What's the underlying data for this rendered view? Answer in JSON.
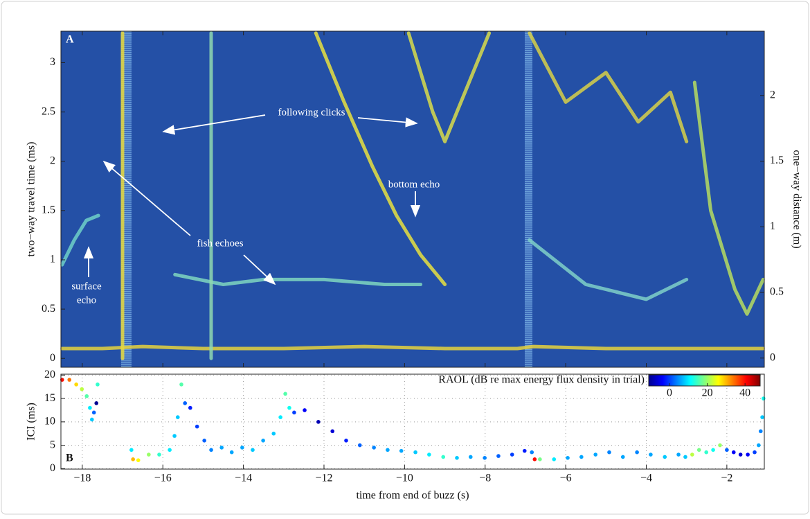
{
  "chart_data": [
    {
      "type": "line",
      "annotations": [
        "A",
        "following clicks",
        "bottom echo",
        "fish echoes",
        "surface",
        "echo"
      ],
      "ylabel": "two−way travel time (ms)",
      "y2label": "one−way distance (m)",
      "xlim": [
        -18.53,
        -1.07
      ],
      "ylim": [
        -0.09,
        3.32
      ],
      "y2lim": [
        -0.07,
        2.49
      ],
      "xticks": [
        -18,
        -16,
        -14,
        -12,
        -10,
        -8,
        -6,
        -4,
        -2
      ],
      "yticks": [
        0,
        0.5,
        1,
        1.5,
        2,
        2.5,
        3
      ],
      "y2ticks": [
        0,
        0.5,
        1,
        1.5,
        2
      ],
      "background": "#2450a6",
      "series": [
        {
          "color": "#e6d23c",
          "x": [
            -18.5,
            -17.5,
            -16.5,
            -15,
            -13,
            -11,
            -9,
            -7.2,
            -6.8,
            -5,
            -3,
            -1.1
          ],
          "values": [
            0.1,
            0.1,
            0.12,
            0.1,
            0.1,
            0.12,
            0.1,
            0.1,
            0.12,
            0.1,
            0.1,
            0.1
          ]
        },
        {
          "color": "#6fd0c8",
          "x": [
            -18.5,
            -18.2,
            -17.9,
            -17.6
          ],
          "values": [
            0.95,
            1.2,
            1.4,
            1.45
          ]
        },
        {
          "color": "#e8e040",
          "x": [
            -12.2,
            -11.5,
            -10.8,
            -10.2,
            -9.6,
            -9.0
          ],
          "values": [
            3.3,
            2.6,
            1.95,
            1.45,
            1.05,
            0.75
          ]
        },
        {
          "color": "#d8dc4a",
          "x": [
            -9.9,
            -9.6,
            -9.3,
            -9.0,
            -8.7,
            -8.3,
            -7.9
          ],
          "values": [
            3.3,
            2.9,
            2.5,
            2.2,
            2.5,
            2.9,
            3.3
          ]
        },
        {
          "color": "#7fd6c0",
          "x": [
            -15.7,
            -14.5,
            -13.5,
            -12.0,
            -10.5,
            -9.6
          ],
          "values": [
            0.85,
            0.75,
            0.8,
            0.8,
            0.75,
            0.75
          ]
        },
        {
          "color": "#e6d83c",
          "x": [
            -17.0,
            -17.0
          ],
          "values": [
            0,
            3.3
          ]
        },
        {
          "color": "#8fd8b0",
          "x": [
            -14.8,
            -14.8
          ],
          "values": [
            0,
            3.3
          ]
        },
        {
          "color": "#7fd0c8",
          "x": [
            -6.9,
            -5.5,
            -4.0,
            -3.0
          ],
          "values": [
            1.2,
            0.75,
            0.6,
            0.8
          ]
        },
        {
          "color": "#b6dc60",
          "x": [
            -2.8,
            -2.4,
            -1.8,
            -1.5,
            -1.1
          ],
          "values": [
            2.8,
            1.5,
            0.7,
            0.45,
            0.8
          ]
        },
        {
          "color": "#d8d048",
          "x": [
            -6.9,
            -6.0,
            -5.0,
            -4.2,
            -3.4,
            -3.0
          ],
          "values": [
            3.3,
            2.6,
            2.9,
            2.4,
            2.7,
            2.2
          ]
        }
      ]
    },
    {
      "type": "scatter",
      "annotations": [
        "B"
      ],
      "ylabel": "ICI (ms)",
      "xlabel": "time from end of buzz (s)",
      "xlim": [
        -18.53,
        -1.07
      ],
      "ylim": [
        -0.1,
        20.2
      ],
      "xticks": [
        {
          "value": -18,
          "label": "−18"
        },
        {
          "value": -16,
          "label": "−16"
        },
        {
          "value": -14,
          "label": "−14"
        },
        {
          "value": -12,
          "label": "−12"
        },
        {
          "value": -10,
          "label": "−10"
        },
        {
          "value": -8,
          "label": "−8"
        },
        {
          "value": -6,
          "label": "−6"
        },
        {
          "value": -4,
          "label": "−4"
        },
        {
          "value": -2,
          "label": "−2"
        }
      ],
      "yticks": [
        0,
        5,
        10,
        15,
        20
      ],
      "grid": true,
      "x": [
        -18.5,
        -18.32,
        -18.15,
        -18.01,
        -17.89,
        -17.81,
        -17.76,
        -17.71,
        -17.65,
        -17.62,
        -16.78,
        -16.74,
        -16.61,
        -16.35,
        -16.09,
        -15.83,
        -15.71,
        -15.63,
        -15.54,
        -15.45,
        -15.32,
        -15.15,
        -14.97,
        -14.8,
        -14.54,
        -14.29,
        -14.03,
        -13.77,
        -13.51,
        -13.25,
        -13.08,
        -12.96,
        -12.86,
        -12.74,
        -12.48,
        -12.14,
        -11.79,
        -11.45,
        -11.11,
        -10.76,
        -10.42,
        -10.08,
        -9.73,
        -9.39,
        -9.04,
        -8.7,
        -8.36,
        -8.01,
        -7.67,
        -7.33,
        -7.02,
        -6.84,
        -6.77,
        -6.64,
        -6.29,
        -5.95,
        -5.61,
        -5.26,
        -4.92,
        -4.58,
        -4.23,
        -3.89,
        -3.54,
        -3.2,
        -3.03,
        -2.86,
        -2.69,
        -2.51,
        -2.34,
        -2.17,
        -2.0,
        -1.83,
        -1.66,
        -1.48,
        -1.31,
        -1.21,
        -1.16,
        -1.12,
        -1.09
      ],
      "values": [
        19,
        19,
        18,
        17,
        15.5,
        13,
        10.5,
        12,
        14,
        18,
        4,
        2,
        1.8,
        3,
        3,
        4,
        7,
        11,
        18,
        14,
        13,
        9,
        6,
        4,
        4.5,
        3.5,
        4.5,
        4,
        6,
        7.5,
        11,
        16,
        13,
        12,
        12.5,
        10,
        8,
        6,
        5,
        4.5,
        4,
        3.8,
        3.5,
        3,
        2.5,
        2.3,
        2.5,
        2.3,
        2.7,
        3,
        3.8,
        3.5,
        2,
        2,
        2,
        2.3,
        2.5,
        3,
        3.5,
        2.5,
        3.5,
        3,
        2.5,
        3,
        2.5,
        3,
        4,
        3.5,
        4,
        5,
        4,
        3.5,
        3,
        3,
        3.5,
        5,
        8,
        11,
        15
      ],
      "c": [
        40,
        34,
        28,
        22,
        16,
        10,
        8,
        2,
        -10,
        14,
        10,
        30,
        26,
        20,
        14,
        10,
        8,
        8,
        16,
        2,
        -2,
        0,
        2,
        4,
        6,
        6,
        6,
        8,
        6,
        8,
        10,
        16,
        12,
        0,
        -4,
        -8,
        -6,
        -2,
        2,
        4,
        6,
        6,
        8,
        10,
        14,
        8,
        6,
        4,
        2,
        0,
        -2,
        4,
        40,
        18,
        10,
        6,
        6,
        6,
        4,
        6,
        4,
        6,
        8,
        6,
        8,
        22,
        18,
        14,
        12,
        20,
        2,
        -4,
        -6,
        -4,
        0,
        6,
        4,
        8,
        12
      ],
      "colorbar": {
        "label": "RAOL (dB re max energy flux density in trial)",
        "clim": [
          -11,
          48
        ],
        "ticks": [
          0,
          20,
          40
        ],
        "colormap": "jet"
      }
    }
  ]
}
